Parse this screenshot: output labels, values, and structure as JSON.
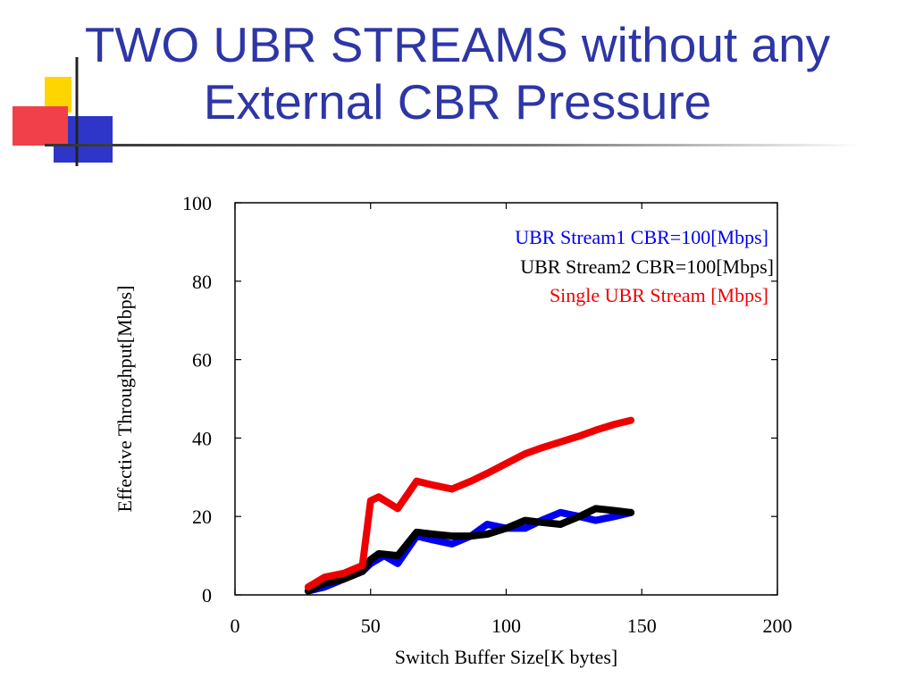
{
  "slide": {
    "title_line1": "TWO UBR STREAMS without any",
    "title_line2": "External CBR Pressure",
    "title_color": "#2e36a6"
  },
  "chart_data": {
    "type": "line",
    "title": "",
    "xlabel": "Switch Buffer Size[K bytes]",
    "ylabel": "Effective Throughput[Mbps]",
    "xlim": [
      0,
      200
    ],
    "ylim": [
      0,
      100
    ],
    "xticks": [
      0,
      50,
      100,
      150,
      200
    ],
    "yticks": [
      0,
      20,
      40,
      60,
      80,
      100
    ],
    "grid": false,
    "legend_position": "top-right",
    "series": [
      {
        "name": "UBR Stream1 CBR=100[Mbps]",
        "color": "#0000ee",
        "x": [
          27,
          33,
          40,
          47,
          50,
          55,
          60,
          67,
          73,
          80,
          87,
          93,
          100,
          107,
          113,
          120,
          127,
          133,
          140,
          146
        ],
        "y": [
          1,
          2,
          4,
          6,
          8,
          10,
          8,
          15,
          14,
          13,
          15,
          18,
          17,
          17,
          19,
          21,
          20,
          19,
          20,
          21
        ]
      },
      {
        "name": "UBR Stream2 CBR=100[Mbps]",
        "color": "#000000",
        "x": [
          27,
          33,
          40,
          47,
          50,
          53,
          60,
          67,
          73,
          80,
          87,
          93,
          100,
          107,
          113,
          120,
          127,
          133,
          140,
          146
        ],
        "y": [
          1,
          3,
          4,
          6,
          9,
          10.5,
          10,
          16,
          15.5,
          15,
          15,
          15.5,
          17,
          19,
          18.5,
          18,
          20,
          22,
          21.5,
          21
        ]
      },
      {
        "name": "Single UBR Stream [Mbps]",
        "color": "#ee0000",
        "x": [
          27,
          33,
          40,
          47,
          50,
          53,
          60,
          67,
          73,
          80,
          87,
          93,
          100,
          107,
          113,
          120,
          127,
          133,
          140,
          146
        ],
        "y": [
          2,
          4.5,
          5.5,
          7.5,
          24,
          25,
          22,
          29,
          28,
          27,
          29,
          31,
          33.5,
          36,
          37.5,
          39,
          40.5,
          42,
          43.5,
          44.5
        ]
      }
    ]
  }
}
